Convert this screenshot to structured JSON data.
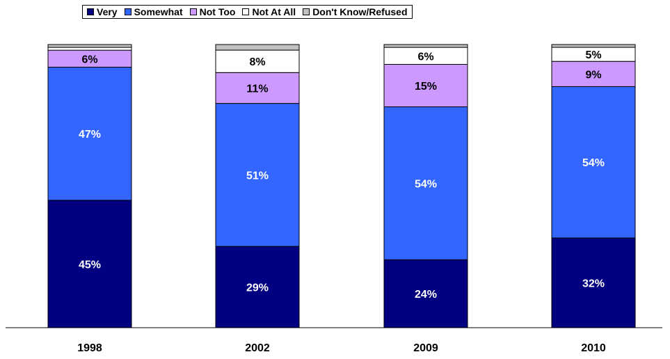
{
  "chart_data": {
    "type": "bar",
    "stacked": true,
    "categories": [
      "1998",
      "2002",
      "2009",
      "2010"
    ],
    "series": [
      {
        "name": "Very",
        "color": "#000080",
        "values": [
          45,
          29,
          24,
          32
        ],
        "labels": [
          "45%",
          "29%",
          "24%",
          "32%"
        ]
      },
      {
        "name": "Somewhat",
        "color": "#3366FF",
        "values": [
          47,
          51,
          54,
          54
        ],
        "labels": [
          "47%",
          "51%",
          "54%",
          "54%"
        ]
      },
      {
        "name": "Not Too",
        "color": "#CC99FF",
        "values": [
          6,
          11,
          15,
          9
        ],
        "labels": [
          "6%",
          "11%",
          "15%",
          "9%"
        ]
      },
      {
        "name": "Not At All",
        "color": "#FFFFFF",
        "values": [
          1,
          8,
          6,
          5
        ],
        "labels": [
          "",
          "8%",
          "6%",
          "5%"
        ]
      },
      {
        "name": "Don't Know/Refused",
        "color": "#C0C0C0",
        "values": [
          1,
          2,
          1,
          1
        ],
        "labels": [
          "",
          "",
          "",
          ""
        ]
      }
    ],
    "ylim": [
      0,
      100
    ],
    "legend": "top",
    "grid": false,
    "title": "",
    "xlabel": "",
    "ylabel": ""
  }
}
